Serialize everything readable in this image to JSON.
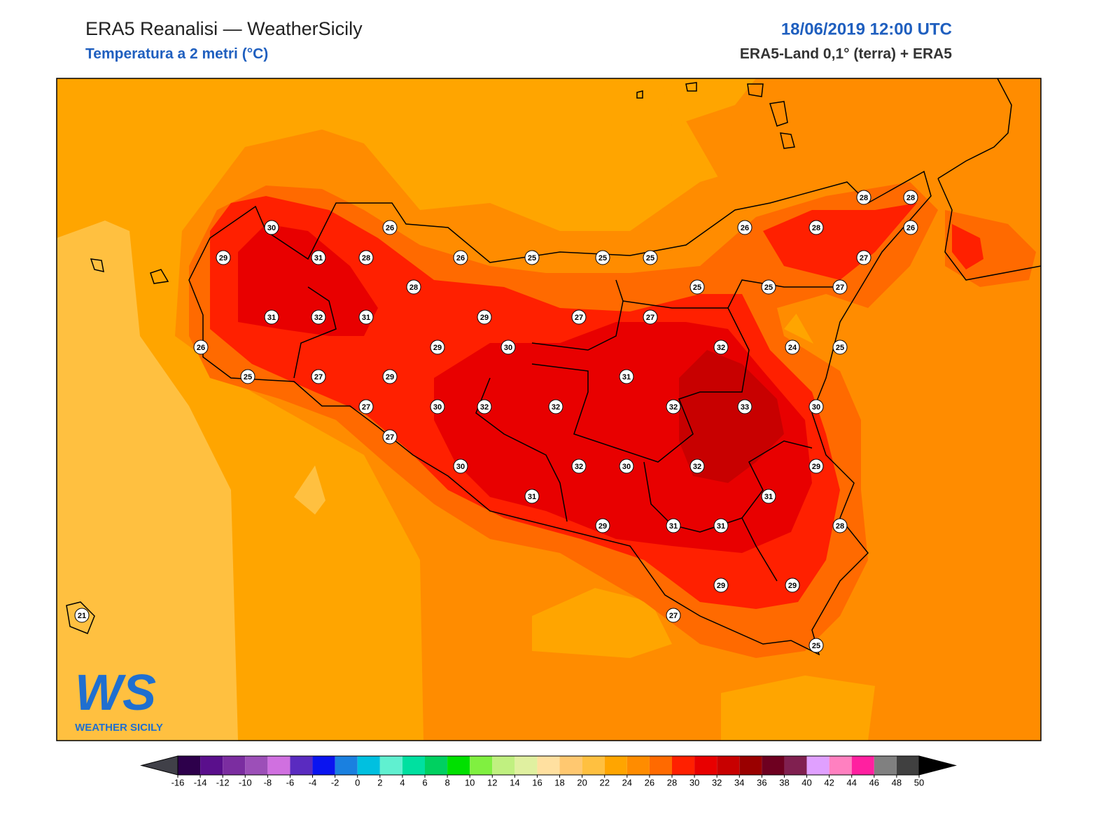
{
  "header": {
    "title": "ERA5 Reanalisi — WeatherSicily",
    "subtitle": "Temperatura a 2 metri (°C)",
    "date": "18/06/2019 12:00 UTC",
    "source": "ERA5-Land 0,1° (terra) + ERA5"
  },
  "stations": [
    30,
    26,
    29,
    31,
    28,
    26,
    25,
    25,
    25,
    26,
    28,
    28,
    28,
    26,
    27,
    28,
    25,
    25,
    27,
    31,
    32,
    31,
    29,
    27,
    27,
    29,
    30,
    32,
    24,
    25,
    26,
    25,
    27,
    29,
    31,
    27,
    30,
    32,
    32,
    32,
    33,
    30,
    27,
    30,
    32,
    30,
    32,
    29,
    31,
    31,
    29,
    31,
    31,
    28,
    29,
    29,
    27,
    25,
    21
  ],
  "colorbar": {
    "ticks": [
      -16,
      -14,
      -12,
      -10,
      -8,
      -6,
      -4,
      -2,
      0,
      2,
      4,
      6,
      8,
      10,
      12,
      14,
      16,
      18,
      20,
      22,
      24,
      26,
      28,
      30,
      32,
      34,
      36,
      38,
      40,
      42,
      44,
      46,
      48,
      50
    ],
    "colors": [
      "#2d004b",
      "#5a0f8c",
      "#7b2da0",
      "#9c4fb8",
      "#d070e0",
      "#5a2bc0",
      "#0a14f0",
      "#1a80e0",
      "#00c0e0",
      "#60f0d0",
      "#00e0a0",
      "#00d060",
      "#00e000",
      "#80f040",
      "#c0f080",
      "#e0f0a0",
      "#ffe0a0",
      "#ffc870",
      "#ffc040",
      "#ffa500",
      "#ff8c00",
      "#ff6a00",
      "#ff2000",
      "#e80000",
      "#c80000",
      "#9a0000",
      "#6e0020",
      "#802050",
      "#e0a0ff",
      "#ff80c0",
      "#ff20a0",
      "#808080",
      "#404040"
    ]
  },
  "logo": {
    "mark": "WS",
    "text": "WEATHER SICILY"
  }
}
